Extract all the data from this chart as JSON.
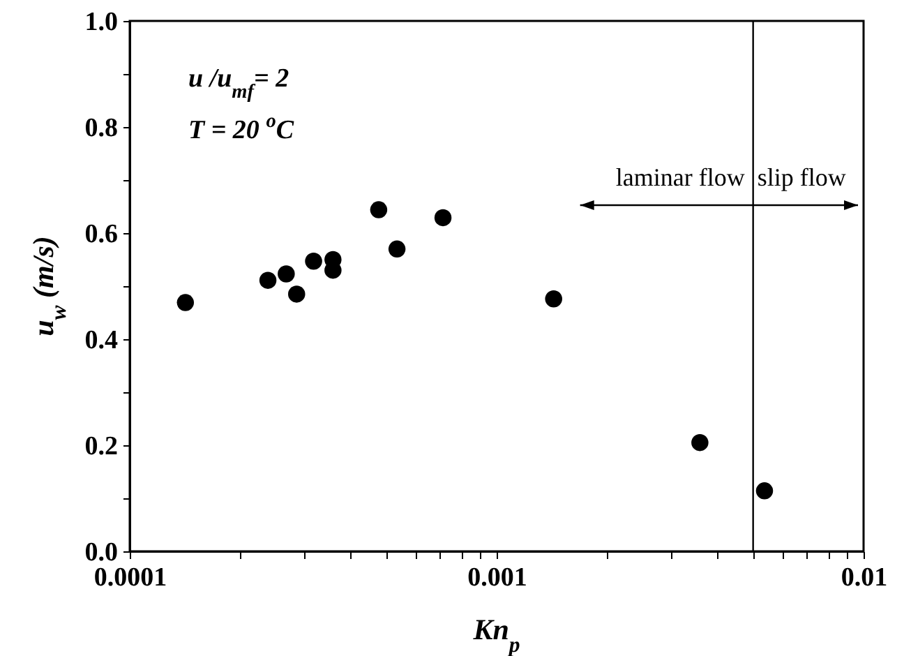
{
  "chart_data": {
    "type": "scatter",
    "xlabel": "Kn$_{p}$",
    "ylabel": "u$_{w}$ (m/s)",
    "x": [
      0.0001418,
      0.000238,
      0.000267,
      0.000285,
      0.000317,
      0.000358,
      0.000358,
      0.000477,
      0.000535,
      0.000714,
      0.00143,
      0.00358,
      0.00537
    ],
    "series": [
      {
        "color": "#000000",
        "values": [
          0.469,
          0.511,
          0.523,
          0.485,
          0.547,
          0.55,
          0.53,
          0.644,
          0.57,
          0.629,
          0.476,
          0.205,
          0.114
        ]
      }
    ],
    "log": "x",
    "marker": "circle",
    "grid": false,
    "xlim": [
      0.0001,
      0.01
    ],
    "xticks": [
      {
        "value": 0.0001,
        "label": "0.0001"
      },
      {
        "value": 0.0002,
        "label": null
      },
      {
        "value": 0.0003,
        "label": null
      },
      {
        "value": 0.0004,
        "label": null
      },
      {
        "value": 0.0005,
        "label": null
      },
      {
        "value": 0.0006,
        "label": null
      },
      {
        "value": 0.0007,
        "label": null
      },
      {
        "value": 0.0008,
        "label": null
      },
      {
        "value": 0.0009,
        "label": null
      },
      {
        "value": 0.001,
        "label": "0.001"
      },
      {
        "value": 0.002,
        "label": null
      },
      {
        "value": 0.003,
        "label": null
      },
      {
        "value": 0.004,
        "label": null
      },
      {
        "value": 0.005,
        "label": null
      },
      {
        "value": 0.006,
        "label": null
      },
      {
        "value": 0.007,
        "label": null
      },
      {
        "value": 0.008,
        "label": null
      },
      {
        "value": 0.009,
        "label": null
      },
      {
        "value": 0.01,
        "label": "0.01"
      }
    ],
    "ylim": [
      0,
      1
    ],
    "yticks": [
      {
        "value": 0,
        "label": "0.0"
      },
      {
        "value": 0.1,
        "label": null
      },
      0.2,
      {
        "value": 0.3,
        "label": null
      },
      0.4,
      {
        "value": 0.5,
        "label": null
      },
      0.6,
      {
        "value": 0.7,
        "label": null
      },
      0.8,
      {
        "value": 0.9,
        "label": null
      },
      {
        "value": 1,
        "label": "1.0"
      }
    ],
    "ref_lines": [
      {
        "axis": "x",
        "value": 0.005,
        "color": "#000000"
      }
    ],
    "annotations": [
      "u /u$_{mf}$= 2",
      "T = 20 $^{o}$C",
      "laminar flow",
      "slip flow"
    ]
  }
}
